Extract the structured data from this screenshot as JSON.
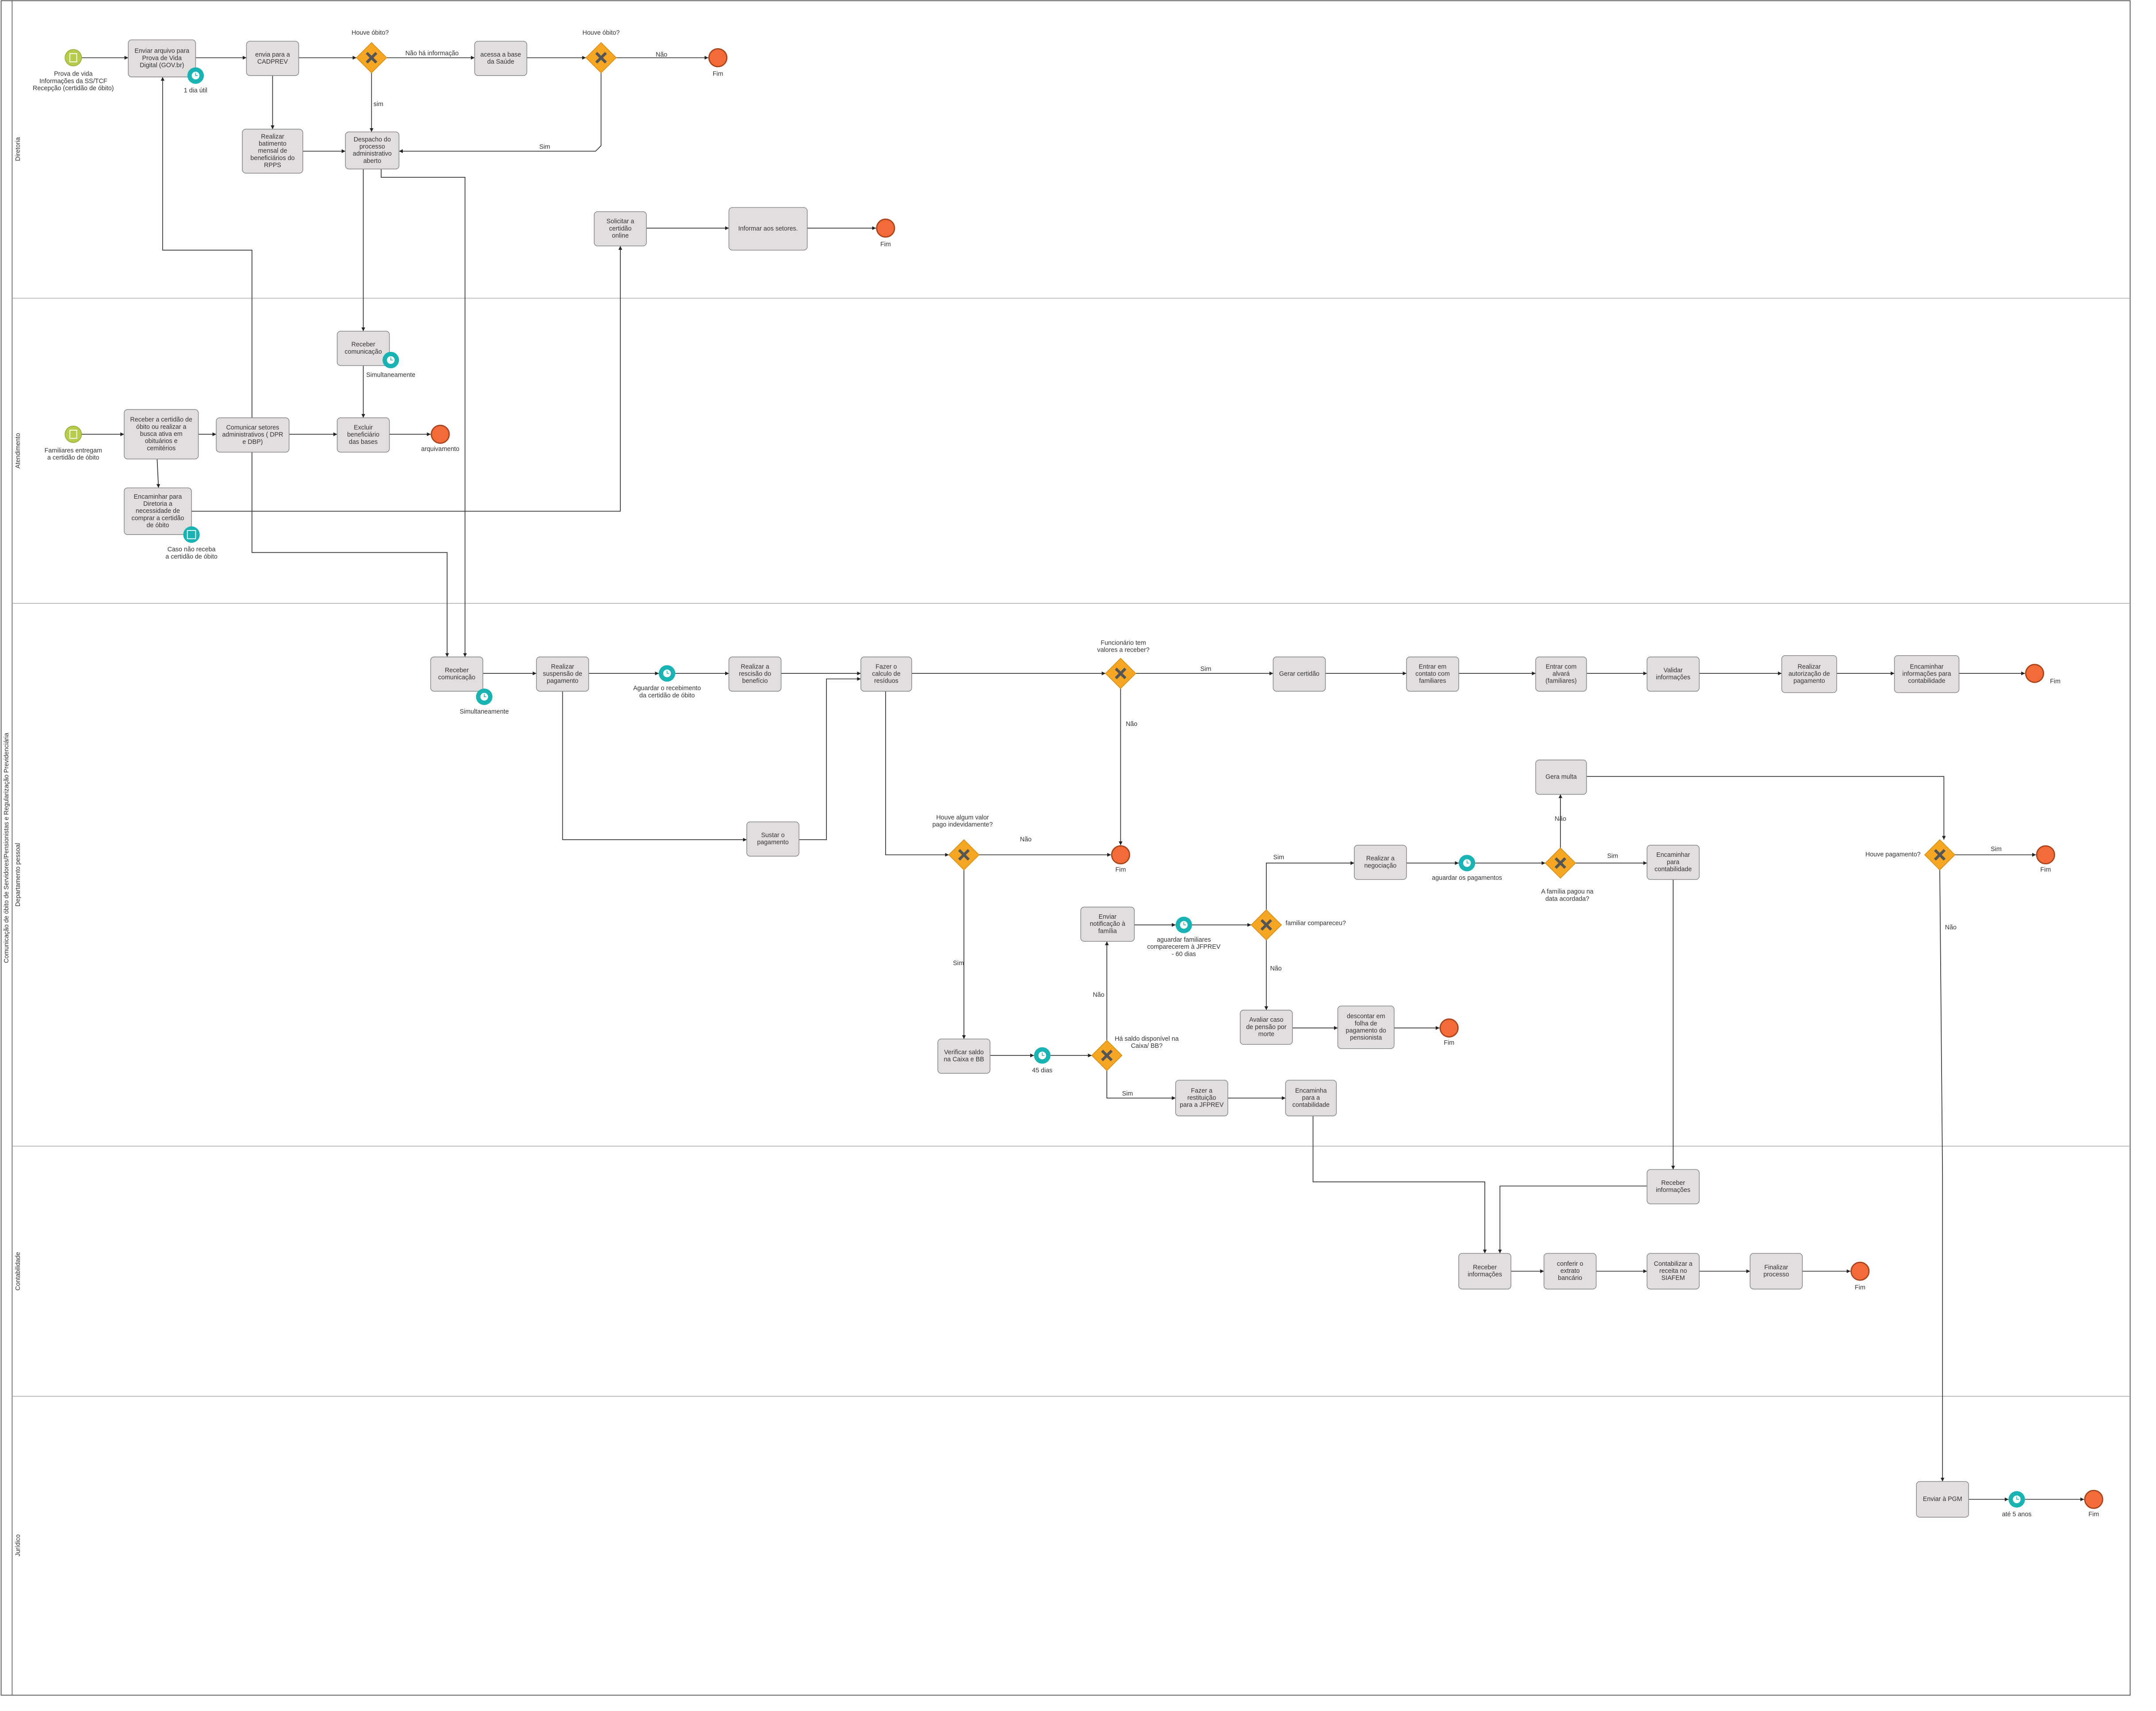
{
  "pool": "Comunicação de óbito de Servidores/Pensionistas e Regularização Previdenciária",
  "lanes": [
    "Diretoria",
    "Atendimento",
    "Departamento pessoal",
    "Contabilidade",
    "Jurídico"
  ],
  "tasks": [
    {
      "lines": [
        "Enviar arquivo para",
        "Prova de Vida",
        "Digital (GOV.br)"
      ]
    },
    {
      "lines": [
        "envia para a",
        "CADPREV"
      ]
    },
    {
      "lines": [
        "acessa a base",
        "da Saúde"
      ]
    },
    {
      "lines": [
        "Realizar",
        "batimento",
        "mensal de",
        "beneficiários do",
        "RPPS"
      ]
    },
    {
      "lines": [
        "Despacho do",
        "processo",
        "administrativo",
        "aberto"
      ]
    },
    {
      "lines": [
        "Solicitar a",
        "certidão",
        "online"
      ]
    },
    {
      "lines": [
        "Informar aos setores."
      ]
    },
    {
      "lines": [
        "Receber",
        "comunicação"
      ]
    },
    {
      "lines": [
        "Receber a certidão de",
        "óbito ou realizar a",
        "busca ativa em",
        "obituários e",
        "cemitérios"
      ]
    },
    {
      "lines": [
        "Comunicar setores",
        "administrativos ( DPR",
        "e DBP)"
      ]
    },
    {
      "lines": [
        "Excluir",
        "beneficiário",
        "das bases"
      ]
    },
    {
      "lines": [
        "Encaminhar para",
        "Diretoria a",
        "necessidade de",
        "comprar a certidão",
        "de óbito"
      ]
    },
    {
      "lines": [
        "Receber",
        "comunicação"
      ]
    },
    {
      "lines": [
        "Realizar",
        "suspensão de",
        "pagamento"
      ]
    },
    {
      "lines": [
        "Realizar a",
        "rescisão do",
        "benefício"
      ]
    },
    {
      "lines": [
        "Fazer o",
        "calculo de",
        "resíduos"
      ]
    },
    {
      "lines": [
        "Gerar certidão"
      ]
    },
    {
      "lines": [
        "Entrar em",
        "contato com",
        "familiares"
      ]
    },
    {
      "lines": [
        "Entrar com",
        "alvará",
        "(familiares)"
      ]
    },
    {
      "lines": [
        "Validar",
        "informações"
      ]
    },
    {
      "lines": [
        "Realizar",
        "autorização de",
        "pagamento"
      ]
    },
    {
      "lines": [
        "Encaminhar",
        "informações para",
        "contabilidade"
      ]
    },
    {
      "lines": [
        "Sustar o",
        "pagamento"
      ]
    },
    {
      "lines": [
        "Verificar saldo",
        "na Caixa e BB"
      ]
    },
    {
      "lines": [
        "Enviar",
        "notificação à",
        "família"
      ]
    },
    {
      "lines": [
        "Realizar a",
        "negociação"
      ]
    },
    {
      "lines": [
        "Gera multa"
      ]
    },
    {
      "lines": [
        "Encaminhar",
        "para",
        "contabilidade"
      ]
    },
    {
      "lines": [
        "Avaliar caso",
        "de pensão por",
        "morte"
      ]
    },
    {
      "lines": [
        "descontar em",
        "folha de",
        "pagamento do",
        "pensionista"
      ]
    },
    {
      "lines": [
        "Fazer a",
        "restituição",
        "para a JFPREV"
      ]
    },
    {
      "lines": [
        "Encaminha",
        "para a",
        "contabilidade"
      ]
    },
    {
      "lines": [
        "Receber",
        "informações"
      ]
    },
    {
      "lines": [
        "Receber",
        "informações"
      ]
    },
    {
      "lines": [
        "conferir o",
        "extrato",
        "bancário"
      ]
    },
    {
      "lines": [
        "Contabilizar a",
        "receita no",
        "SIAFEM"
      ]
    },
    {
      "lines": [
        "Finalizar",
        "processo"
      ]
    },
    {
      "lines": [
        "Enviar à PGM"
      ]
    }
  ],
  "events": [
    {
      "caption": [
        "Prova de vida",
        "Informações da SS/TCF",
        "Recepção (certidão de óbito)"
      ]
    },
    {
      "caption": [
        "1 dia útil"
      ]
    },
    {
      "caption": [
        "Fim"
      ]
    },
    {
      "caption": [
        "Fim"
      ]
    },
    {
      "caption": [
        "Simultaneamente"
      ]
    },
    {
      "caption": [
        "Familiares entregam",
        "a certidão de óbito"
      ]
    },
    {
      "caption": [
        "arquivamento"
      ]
    },
    {
      "caption": [
        "Caso não receba",
        "a certidão de óbito"
      ]
    },
    {
      "caption": [
        "Simultaneamente"
      ]
    },
    {
      "caption": [
        "Aguardar o recebimento",
        "da certidão de óbito"
      ]
    },
    {
      "caption": [
        "Fim"
      ]
    },
    {
      "caption": [
        "Fim"
      ]
    },
    {
      "caption": [
        "45 dias"
      ]
    },
    {
      "caption": [
        "aguardar familiares",
        "comparecerem à JFPREV",
        "- 60 dias"
      ]
    },
    {
      "caption": [
        "aguardar os pagamentos"
      ]
    },
    {
      "caption": [
        "Fim"
      ]
    },
    {
      "caption": [
        "Fim"
      ]
    },
    {
      "caption": [
        "Fim"
      ]
    },
    {
      "caption": [
        "até 5 anos"
      ]
    },
    {
      "caption": [
        "Fim"
      ]
    }
  ],
  "gateways": [
    {
      "label": [
        "Houve óbito?"
      ]
    },
    {
      "label": [
        "Houve óbito?"
      ]
    },
    {
      "label": [
        "Funcionário tem",
        "valores a receber?"
      ]
    },
    {
      "label": [
        "Houve algum valor",
        "pago indevidamente?"
      ]
    },
    {
      "label": [
        "Há saldo disponível na",
        "Caixa/ BB?"
      ]
    },
    {
      "label": [
        "familiar compareceu?"
      ]
    },
    {
      "label": [
        "A família pagou na",
        "data acordada?"
      ]
    },
    {
      "label": [
        "Houve pagamento?"
      ]
    }
  ],
  "edge_labels": [
    "Não há informação",
    "Não",
    "sim",
    "Sim",
    "Sim",
    "Não",
    "Não",
    "Sim",
    "Não",
    "Sim",
    "Sim",
    "Não",
    "Não",
    "Sim",
    "Sim",
    "Não"
  ]
}
